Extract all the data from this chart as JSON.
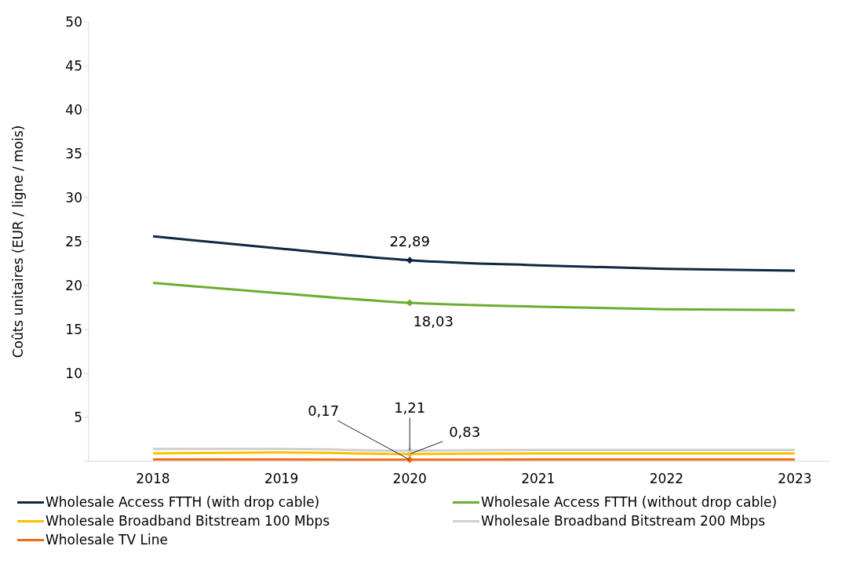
{
  "chart_data": {
    "type": "line",
    "ylabel": "Coûts unitaires (EUR / ligne / mois)",
    "categories": [
      "2018",
      "2019",
      "2020",
      "2021",
      "2022",
      "2023"
    ],
    "ylim": [
      0,
      50
    ],
    "yticks": [
      {
        "value": 0,
        "label": null
      },
      5,
      10,
      15,
      20,
      25,
      30,
      35,
      40,
      45,
      50
    ],
    "grid": false,
    "legend": "bottom",
    "line_style": "solid",
    "series": [
      {
        "name": "Wholesale Access FTTH (with drop cable)",
        "color": "#0e2841",
        "values": [
          25.6,
          24.2,
          22.89,
          22.3,
          21.9,
          21.7
        ],
        "value_labels": [
          null,
          null,
          "22,89",
          null,
          null,
          null
        ]
      },
      {
        "name": "Wholesale Access FTTH (without drop cable)",
        "color": "#6aad2f",
        "values": [
          20.3,
          19.1,
          18.03,
          17.6,
          17.3,
          17.2
        ],
        "value_labels": [
          null,
          null,
          "18,03",
          null,
          null,
          null
        ]
      },
      {
        "name": "Wholesale Broadband Bitstream 100 Mbps",
        "color": "#ffc000",
        "values": [
          0.9,
          1.0,
          0.83,
          0.9,
          0.9,
          0.9
        ],
        "value_labels": [
          null,
          null,
          "0,83",
          null,
          null,
          null
        ]
      },
      {
        "name": "Wholesale Broadband Bitstream 200 Mbps",
        "color": "#d0d0d0",
        "values": [
          1.4,
          1.4,
          1.21,
          1.3,
          1.3,
          1.3
        ],
        "value_labels": [
          null,
          null,
          "1,21",
          null,
          null,
          null
        ]
      },
      {
        "name": "Wholesale TV Line",
        "color": "#f06a10",
        "values": [
          0.2,
          0.2,
          0.17,
          0.2,
          0.2,
          0.2
        ],
        "value_labels": [
          null,
          null,
          "0,17",
          null,
          null,
          null
        ]
      }
    ]
  }
}
